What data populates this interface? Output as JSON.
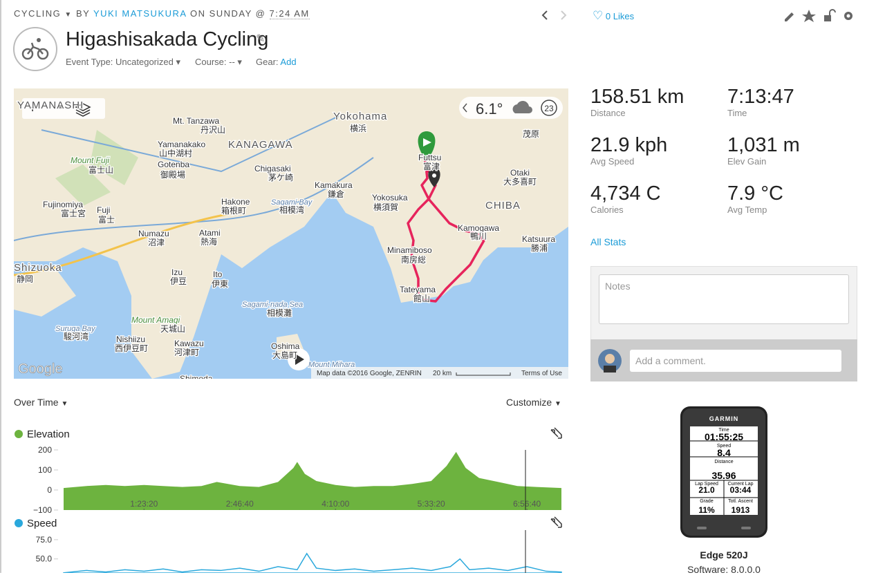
{
  "header": {
    "activity_type": "CYCLING",
    "by": "BY",
    "author": "YUKI MATSUKURA",
    "on": "ON SUNDAY @",
    "time": "7:24 AM",
    "title": "Higashisakada Cycling",
    "event_type": "Event Type: Uncategorized",
    "course": "Course: --",
    "gear": "Gear:",
    "gear_add": "Add",
    "likes": "0 Likes"
  },
  "map": {
    "labels": [
      "YAMANASHI",
      "Yokohama",
      "横浜",
      "KANAGAWA",
      "Mt. Tanzawa",
      "丹沢山",
      "Yamanakako",
      "山中湖村",
      "Gotenba",
      "御殿場",
      "Mount Fuji",
      "富士山",
      "Chigasaki",
      "茅ケ崎",
      "Hakone",
      "箱根町",
      "Sagami Bay",
      "相模湾",
      "Kamakura",
      "鎌倉",
      "Yokosuka",
      "横須賀",
      "Fujinomiya",
      "富士宮",
      "Fuji",
      "富士",
      "Numazu",
      "沼津",
      "Atami",
      "熱海",
      "Izu",
      "伊豆",
      "Ito",
      "伊東",
      "Sagami-nada Sea",
      "相模灘",
      "Minamiboso",
      "南房総",
      "Tateyama",
      "館山",
      "Kamogawa",
      "鴨川",
      "CHIBA",
      "Otaki",
      "大多喜町",
      "Katsuura",
      "勝浦",
      "Shizuoka",
      "静岡",
      "Mount Amagi",
      "天城山",
      "Suruga Bay",
      "駿河湾",
      "Nishiizu",
      "西伊豆町",
      "Kawazu",
      "河津町",
      "Oshima",
      "大島町",
      "Mount Mihara",
      "Shimoda",
      "Futtsu",
      "富津",
      "茂原"
    ],
    "weather_temp": "6.1°",
    "weather_wind": "23",
    "google": "Google",
    "attribution": "Map data ©2016 Google, ZENRIN",
    "scale": "20 km",
    "terms": "Terms of Use"
  },
  "stats": [
    {
      "value": "158.51 km",
      "label": "Distance"
    },
    {
      "value": "7:13:47",
      "label": "Time"
    },
    {
      "value": "21.9 kph",
      "label": "Avg Speed"
    },
    {
      "value": "1,031 m",
      "label": "Elev Gain"
    },
    {
      "value": "4,734 C",
      "label": "Calories"
    },
    {
      "value": "7.9 °C",
      "label": "Avg Temp"
    }
  ],
  "all_stats": "All Stats",
  "notes_placeholder": "Notes",
  "comment_placeholder": "Add a comment.",
  "charts_header": {
    "over_time": "Over Time",
    "customize": "Customize"
  },
  "chart_data": [
    {
      "type": "area",
      "title": "Elevation",
      "color": "#6db33f",
      "xlim": [
        800,
        26800
      ],
      "ylim": [
        -100,
        200
      ],
      "yticks": [
        200,
        100,
        0,
        {
          "value": -100,
          "label": "−100"
        }
      ],
      "xticks": [
        {
          "value": 5000,
          "label": "1:23:20"
        },
        {
          "value": 10000,
          "label": "2:46:40"
        },
        {
          "value": 15000,
          "label": "4:10:00"
        },
        {
          "value": 20000,
          "label": "5:33:20"
        },
        {
          "value": 25000,
          "label": "6:56:40"
        }
      ],
      "x": [
        800,
        2000,
        3000,
        4000,
        5000,
        6000,
        7000,
        8000,
        8800,
        10000,
        11000,
        12000,
        12800,
        13000,
        13400,
        14000,
        15000,
        16000,
        17000,
        18000,
        19000,
        20000,
        20800,
        21300,
        21800,
        22500,
        23500,
        24500,
        25500,
        26800
      ],
      "values": [
        10,
        20,
        25,
        20,
        25,
        20,
        15,
        20,
        40,
        20,
        15,
        40,
        110,
        140,
        80,
        45,
        25,
        15,
        20,
        20,
        30,
        45,
        120,
        190,
        110,
        60,
        40,
        20,
        15,
        10
      ]
    },
    {
      "type": "area",
      "title": "Speed",
      "color": "#2aa8dc",
      "xlim": [
        800,
        26800
      ],
      "ylim": [
        30,
        87.5
      ],
      "yticks": [
        {
          "value": 75,
          "label": "75.0"
        },
        {
          "value": 50,
          "label": "50.0"
        }
      ],
      "x": [
        800,
        2000,
        3000,
        4000,
        5000,
        6000,
        7000,
        8000,
        9000,
        10000,
        11000,
        12000,
        13000,
        13500,
        14000,
        15000,
        16000,
        17000,
        18000,
        19000,
        20000,
        21000,
        21500,
        22000,
        23000,
        24000,
        25000,
        26000,
        26800
      ],
      "values": [
        32,
        35,
        33,
        36,
        34,
        37,
        33,
        36,
        35,
        38,
        34,
        40,
        36,
        57,
        38,
        35,
        37,
        34,
        36,
        38,
        35,
        40,
        50,
        36,
        38,
        35,
        40,
        34,
        33
      ]
    }
  ],
  "device": {
    "brand": "GARMIN",
    "name": "Edge 520J",
    "software": "Software: 8.0.0.0",
    "screen": [
      {
        "label": "Time",
        "value": "01:55:25"
      },
      {
        "label": "Speed",
        "value": "8.4"
      },
      {
        "label": "Distance",
        "value": "35.96"
      },
      {
        "label": "Lap Speed",
        "value": "21.0"
      },
      {
        "label": "Current Lap",
        "value": "03:44"
      },
      {
        "label": "Grade",
        "value": "11%"
      },
      {
        "label": "Totl. Ascent",
        "value": "1913"
      }
    ]
  }
}
